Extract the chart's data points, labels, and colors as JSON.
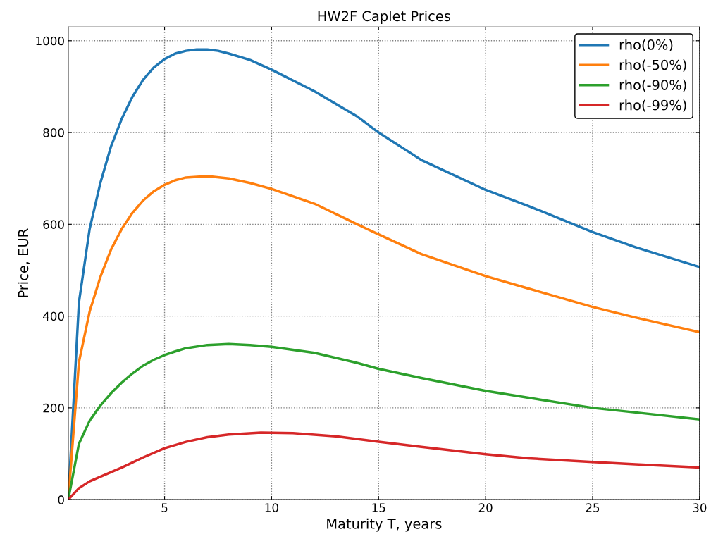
{
  "chart_data": {
    "type": "line",
    "title": "HW2F Caplet Prices",
    "xlabel": "Maturity T, years",
    "ylabel": "Price, EUR",
    "xlim": [
      0.5,
      30
    ],
    "xticks": [
      5,
      10,
      15,
      20,
      25,
      30
    ],
    "ylim": [
      0,
      1030
    ],
    "yticks": [
      0,
      200,
      400,
      600,
      800,
      1000
    ],
    "grid": true,
    "legend": "top right",
    "line_style": "solid",
    "series": [
      {
        "name": "rho(0%)",
        "color": "#1f77b4",
        "x": [
          0.5,
          1,
          1.5,
          2,
          2.5,
          3,
          3.5,
          4,
          4.5,
          5,
          5.5,
          6,
          6.5,
          7,
          7.5,
          8,
          9,
          10,
          12,
          14,
          15,
          17,
          20,
          22,
          25,
          27,
          30
        ],
        "values": [
          0,
          430,
          590,
          690,
          770,
          830,
          878,
          915,
          942,
          960,
          972,
          978,
          981,
          981,
          978,
          972,
          958,
          937,
          890,
          835,
          800,
          740,
          675,
          640,
          583,
          550,
          507
        ]
      },
      {
        "name": "rho(-50%)",
        "color": "#ff7f0e",
        "x": [
          0.5,
          1,
          1.5,
          2,
          2.5,
          3,
          3.5,
          4,
          4.5,
          5,
          5.5,
          6,
          7,
          8,
          9,
          10,
          12,
          14,
          15,
          17,
          20,
          22,
          25,
          27,
          30
        ],
        "values": [
          0,
          300,
          410,
          485,
          545,
          590,
          625,
          652,
          672,
          686,
          696,
          702,
          705,
          700,
          690,
          677,
          645,
          600,
          578,
          535,
          487,
          460,
          420,
          397,
          365
        ]
      },
      {
        "name": "rho(-90%)",
        "color": "#2ca02c",
        "x": [
          0.5,
          1,
          1.5,
          2,
          2.5,
          3,
          3.5,
          4,
          4.5,
          5,
          5.5,
          6,
          7,
          8,
          9,
          10,
          12,
          14,
          15,
          17,
          20,
          22,
          25,
          27,
          30
        ],
        "values": [
          0,
          122,
          172,
          205,
          232,
          255,
          275,
          292,
          305,
          315,
          323,
          330,
          337,
          339,
          337,
          333,
          320,
          298,
          285,
          265,
          237,
          222,
          200,
          190,
          175
        ]
      },
      {
        "name": "rho(-99%)",
        "color": "#d62728",
        "x": [
          0.5,
          1,
          1.5,
          2,
          3,
          4,
          5,
          6,
          7,
          8,
          9.5,
          11,
          13,
          15,
          17,
          20,
          22,
          25,
          27,
          30
        ],
        "values": [
          0,
          25,
          40,
          50,
          70,
          92,
          112,
          126,
          136,
          142,
          146,
          145,
          138,
          126,
          115,
          99,
          90,
          82,
          77,
          70
        ]
      }
    ]
  }
}
